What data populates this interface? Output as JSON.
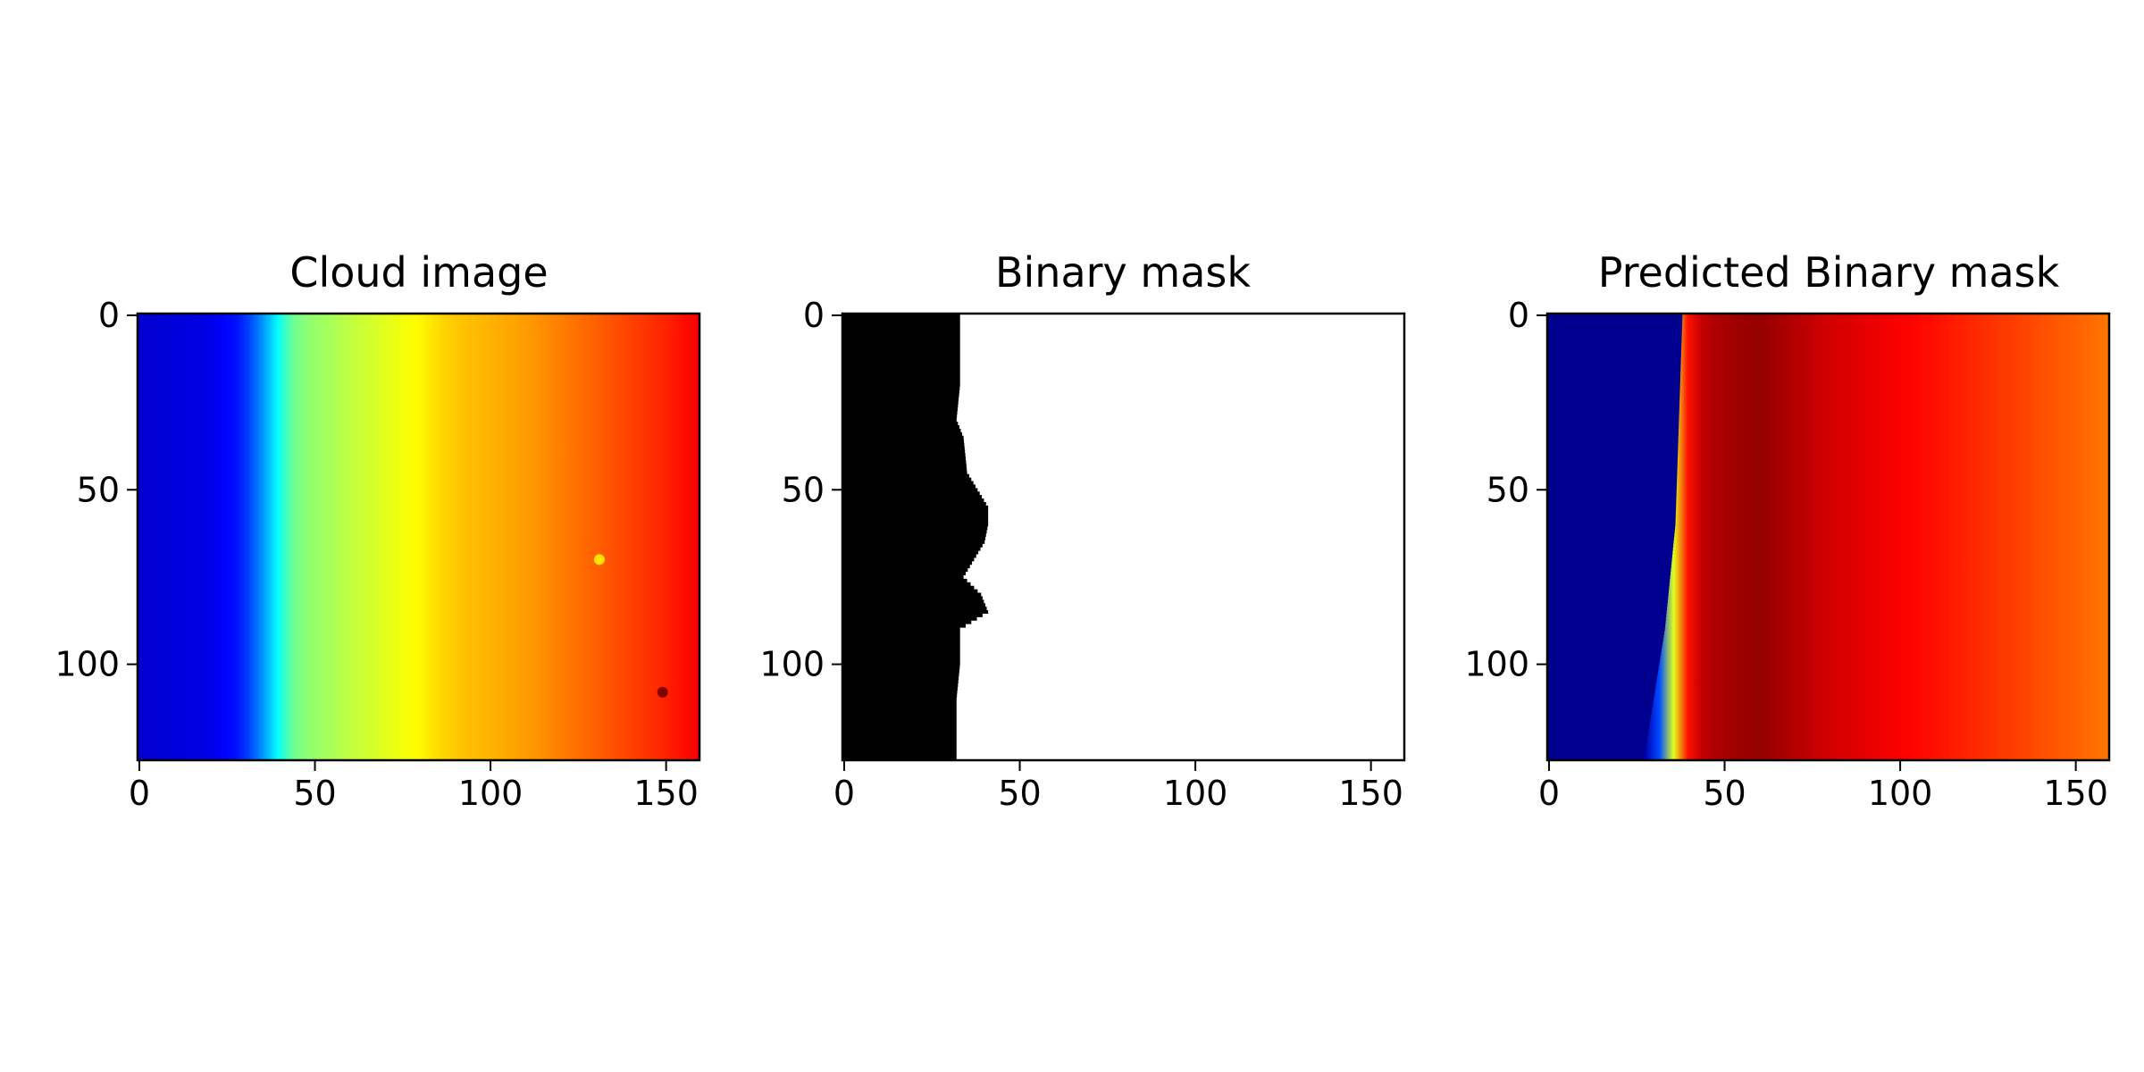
{
  "colors": {
    "background": "#ffffff",
    "axis": "#000000",
    "mask_on": "#000000",
    "mask_off": "#ffffff",
    "jet_dark_blue": "#00008f",
    "jet_cyan": "#00ffff",
    "jet_yellow": "#ffff00",
    "jet_dark_red": "#800000"
  },
  "chart_data": [
    {
      "id": "cloud",
      "type": "heatmap",
      "title": "Cloud image",
      "colormap": "jet",
      "image_width": 160,
      "image_height": 128,
      "xlim": [
        -0.5,
        159.5
      ],
      "ylim": [
        127.5,
        -0.5
      ],
      "xticks": [
        0,
        50,
        100,
        150
      ],
      "yticks": [
        0,
        50,
        100
      ],
      "column_profile": [
        [
          0,
          0.08
        ],
        [
          20,
          0.1
        ],
        [
          30,
          0.15
        ],
        [
          36,
          0.28
        ],
        [
          40,
          0.38
        ],
        [
          45,
          0.5
        ],
        [
          60,
          0.56
        ],
        [
          80,
          0.63
        ],
        [
          90,
          0.68
        ],
        [
          110,
          0.72
        ],
        [
          130,
          0.78
        ],
        [
          150,
          0.84
        ],
        [
          160,
          0.88
        ]
      ],
      "spots": [
        {
          "x": 149,
          "y": 108,
          "value": 1.0
        },
        {
          "x": 131,
          "y": 70,
          "value": 0.65
        }
      ]
    },
    {
      "id": "mask",
      "type": "heatmap",
      "title": "Binary mask",
      "colormap": "gray",
      "image_width": 160,
      "image_height": 128,
      "xlim": [
        -0.5,
        159.5
      ],
      "ylim": [
        127.5,
        -0.5
      ],
      "xticks": [
        0,
        50,
        100,
        150
      ],
      "yticks": [
        0,
        50,
        100
      ],
      "boundary_profile": [
        [
          0,
          33
        ],
        [
          10,
          33
        ],
        [
          20,
          33
        ],
        [
          30,
          32
        ],
        [
          35,
          34
        ],
        [
          45,
          35
        ],
        [
          50,
          38
        ],
        [
          55,
          41
        ],
        [
          60,
          41
        ],
        [
          65,
          40
        ],
        [
          70,
          37
        ],
        [
          75,
          34
        ],
        [
          80,
          39
        ],
        [
          85,
          41
        ],
        [
          90,
          33
        ],
        [
          100,
          33
        ],
        [
          110,
          32
        ],
        [
          120,
          32
        ],
        [
          127,
          32
        ]
      ]
    },
    {
      "id": "pred",
      "type": "heatmap",
      "title": "Predicted Binary mask",
      "colormap": "jet",
      "image_width": 160,
      "image_height": 128,
      "xlim": [
        -0.5,
        159.5
      ],
      "ylim": [
        127.5,
        -0.5
      ],
      "xticks": [
        0,
        50,
        100,
        150
      ],
      "yticks": [
        0,
        50,
        100
      ],
      "boundary_profile": [
        [
          0,
          38
        ],
        [
          30,
          37
        ],
        [
          60,
          36
        ],
        [
          90,
          33
        ],
        [
          115,
          29
        ],
        [
          127,
          27
        ]
      ],
      "column_profile": [
        [
          0,
          0.04
        ],
        [
          30,
          0.05
        ],
        [
          34,
          0.35
        ],
        [
          37,
          0.72
        ],
        [
          40,
          0.86
        ],
        [
          45,
          0.95
        ],
        [
          60,
          0.98
        ],
        [
          80,
          0.92
        ],
        [
          100,
          0.88
        ],
        [
          120,
          0.84
        ],
        [
          140,
          0.8
        ],
        [
          160,
          0.76
        ]
      ]
    }
  ]
}
